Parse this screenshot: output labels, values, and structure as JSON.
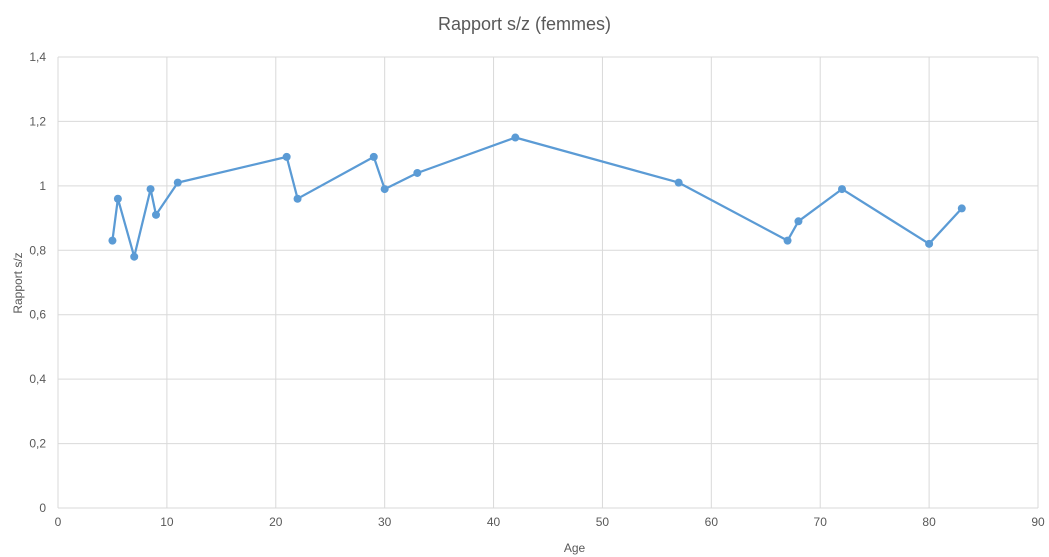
{
  "chart_data": {
    "type": "line",
    "title": "Rapport s/z (femmes)",
    "xlabel": "Age",
    "ylabel": "Rapport s/z",
    "xlim": [
      0,
      90
    ],
    "ylim": [
      0,
      1.4
    ],
    "x_ticks": [
      "0",
      "10",
      "20",
      "30",
      "40",
      "50",
      "60",
      "70",
      "80",
      "90"
    ],
    "y_ticks": [
      "0",
      "0,2",
      "0,4",
      "0,6",
      "0,8",
      "1",
      "1,2",
      "1,4"
    ],
    "grid": true,
    "colors": {
      "series": "#5b9bd5",
      "grid": "#d9d9d9",
      "text": "#595959"
    },
    "series": [
      {
        "x": [
          5,
          5.5,
          7,
          8.5,
          9,
          11,
          21,
          22,
          29,
          30,
          33,
          42,
          57,
          67,
          68,
          72,
          80,
          83
        ],
        "y": [
          0.83,
          0.96,
          0.78,
          0.99,
          0.91,
          1.01,
          1.09,
          0.96,
          1.09,
          0.99,
          1.04,
          1.15,
          1.01,
          0.83,
          0.89,
          0.99,
          0.82,
          0.93
        ]
      }
    ]
  }
}
